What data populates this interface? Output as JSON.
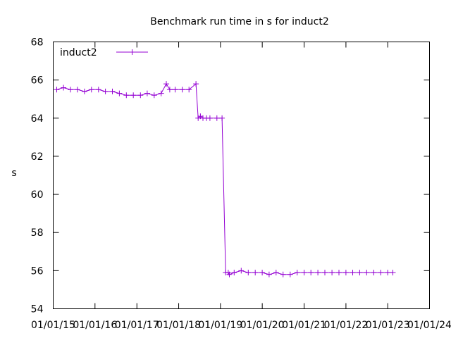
{
  "chart_data": {
    "type": "line",
    "title": "Benchmark run time in s for induct2",
    "xlabel": "",
    "ylabel": "s",
    "ylim": [
      54,
      68
    ],
    "yticks": [
      54,
      56,
      58,
      60,
      62,
      64,
      66,
      68
    ],
    "xlim": [
      "2015-01-01",
      "2024-01-01"
    ],
    "xticks": [
      {
        "date": "2015-01-01",
        "label": "01/01/15"
      },
      {
        "date": "2016-01-01",
        "label": "01/01/16"
      },
      {
        "date": "2017-01-01",
        "label": "01/01/17"
      },
      {
        "date": "2018-01-01",
        "label": "01/01/18"
      },
      {
        "date": "2019-01-01",
        "label": "01/01/19"
      },
      {
        "date": "2020-01-01",
        "label": "01/01/20"
      },
      {
        "date": "2021-01-01",
        "label": "01/01/21"
      },
      {
        "date": "2022-01-01",
        "label": "01/01/22"
      },
      {
        "date": "2023-01-01",
        "label": "01/01/23"
      },
      {
        "date": "2024-01-01",
        "label": "01/01/24"
      }
    ],
    "grid": false,
    "legend": "top-left",
    "series": [
      {
        "name": "induct2",
        "color": "#9400d3",
        "marker": "plus",
        "x": [
          "2015-02-01",
          "2015-04-01",
          "2015-06-01",
          "2015-08-01",
          "2015-10-01",
          "2015-12-01",
          "2016-02-01",
          "2016-04-01",
          "2016-06-01",
          "2016-08-01",
          "2016-10-01",
          "2016-12-01",
          "2017-02-01",
          "2017-04-01",
          "2017-06-01",
          "2017-08-01",
          "2017-09-15",
          "2017-10-15",
          "2017-12-01",
          "2018-02-01",
          "2018-04-01",
          "2018-06-01",
          "2018-06-20",
          "2018-07-10",
          "2018-08-01",
          "2018-09-01",
          "2018-10-01",
          "2018-12-01",
          "2019-01-15",
          "2019-02-15",
          "2019-03-10",
          "2019-03-20",
          "2019-05-01",
          "2019-07-01",
          "2019-09-01",
          "2019-11-01",
          "2020-01-01",
          "2020-03-01",
          "2020-05-01",
          "2020-07-01",
          "2020-09-01",
          "2020-11-01",
          "2021-01-01",
          "2021-03-01",
          "2021-05-01",
          "2021-07-01",
          "2021-09-01",
          "2021-11-01",
          "2022-01-01",
          "2022-03-01",
          "2022-05-01",
          "2022-07-01",
          "2022-09-01",
          "2022-11-01",
          "2023-01-01",
          "2023-02-15"
        ],
        "values": [
          65.5,
          65.6,
          65.5,
          65.5,
          65.4,
          65.5,
          65.5,
          65.4,
          65.4,
          65.3,
          65.2,
          65.2,
          65.2,
          65.3,
          65.2,
          65.3,
          65.8,
          65.5,
          65.5,
          65.5,
          65.5,
          65.8,
          64.0,
          64.1,
          64.0,
          64.0,
          64.0,
          64.0,
          64.0,
          55.9,
          55.9,
          55.8,
          55.9,
          56.0,
          55.9,
          55.9,
          55.9,
          55.8,
          55.9,
          55.8,
          55.8,
          55.9,
          55.9,
          55.9,
          55.9,
          55.9,
          55.9,
          55.9,
          55.9,
          55.9,
          55.9,
          55.9,
          55.9,
          55.9,
          55.9,
          55.9
        ]
      }
    ]
  }
}
